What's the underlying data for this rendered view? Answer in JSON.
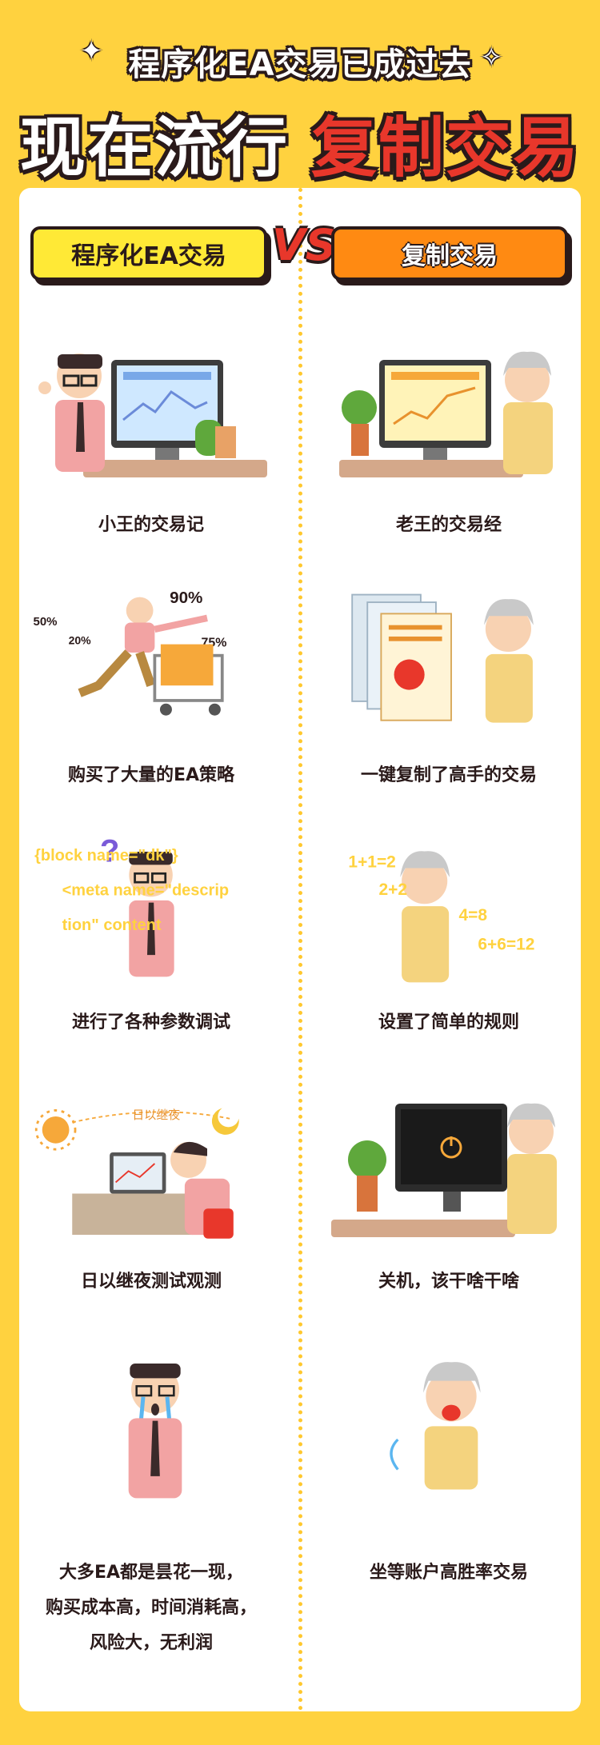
{
  "header": {
    "subtitle": "程序化EA交易已成过去",
    "title_white": "现在流行",
    "title_red": "复制交易"
  },
  "columns": {
    "left_title": "程序化EA交易",
    "vs": "VS",
    "right_title": "复制交易"
  },
  "left_rows": [
    {
      "caption": "小王的交易记"
    },
    {
      "caption": "购买了大量的EA策略",
      "pct": [
        "50%",
        "20%",
        "90%",
        "75%"
      ]
    },
    {
      "caption": "进行了各种参数调试",
      "code": [
        "{block name=\"dk\"}",
        "<meta name=\"descrip",
        "tion\" content"
      ]
    },
    {
      "caption": "日以继夜测试观测",
      "arc_label": "日以继夜"
    },
    {
      "caption_lines": [
        "大多EA都是昙花一现，",
        "购买成本高，时间消耗高，",
        "风险大，无利润"
      ]
    }
  ],
  "right_rows": [
    {
      "caption": "老王的交易经"
    },
    {
      "caption": "一键复制了高手的交易"
    },
    {
      "caption": "设置了简单的规则",
      "math": [
        "1+1=2",
        "2+2",
        "4=8",
        "6+6=12"
      ]
    },
    {
      "caption": "关机，该干啥干啥"
    },
    {
      "caption": "坐等账户高胜率交易"
    }
  ],
  "colors": {
    "background": "#FFD23F",
    "accent_red": "#E8372B",
    "accent_orange": "#FF8A12",
    "accent_yellow": "#FFE936"
  }
}
